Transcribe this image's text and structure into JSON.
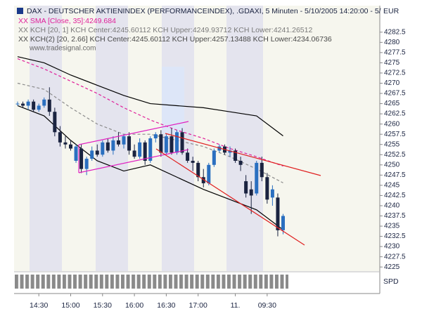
{
  "chart_data": {
    "type": "candlestick",
    "title": "DAX - DEUTSCHER AKTIENINDEX (PERFORMANCEINDEX), .GDAXI, 5 Minuten - 5/10/2005 14:20:00 - 5/",
    "currency": "EUR",
    "watermark": "www.tradesignal.com",
    "volume_label": "SPD",
    "up_color": "#2a6fc0",
    "down_color": "#1a2340",
    "categories": [
      null,
      null,
      null,
      null,
      "14:30",
      null,
      null,
      null,
      null,
      null,
      "15:00",
      null,
      null,
      null,
      null,
      null,
      "15:30",
      null,
      null,
      null,
      null,
      null,
      "16:00",
      null,
      null,
      null,
      null,
      null,
      "16:30",
      null,
      null,
      null,
      null,
      null,
      "17:00",
      null,
      null,
      null,
      null,
      null,
      null,
      "11.",
      null,
      null,
      null,
      null,
      null,
      "09:30",
      null,
      null,
      null
    ],
    "open": [
      4265,
      4265,
      4264.5,
      4265.5,
      4263.5,
      4264.5,
      4266,
      4263,
      4258,
      4255.5,
      4255,
      4251,
      4254,
      4249,
      4251.5,
      4253.5,
      4252.5,
      4255.5,
      4253.5,
      4256,
      4255,
      4257,
      4253.5,
      4252,
      4255.5,
      4251,
      4256.5,
      4257.5,
      4253,
      4257,
      4253,
      4258,
      4253,
      4251,
      4250.5,
      4247,
      4245.5,
      4250,
      4253.5,
      4254.5,
      4253,
      4253.5,
      4251,
      4246,
      4244,
      4243,
      4250.5,
      4247,
      4242,
      4242,
      4234
    ],
    "high": [
      4265.5,
      4265.5,
      4266,
      4266,
      4265,
      4266.5,
      4269,
      4264,
      4259.5,
      4257,
      4256,
      4255,
      4255,
      4252,
      4254.5,
      4255,
      4256,
      4256.5,
      4257,
      4258,
      4257.5,
      4258,
      4255,
      4256.5,
      4256,
      4257,
      4258,
      4258.5,
      4257.5,
      4259,
      4258.5,
      4259,
      4254,
      4252,
      4251,
      4249,
      4250.5,
      4254,
      4255,
      4255,
      4254.5,
      4254,
      4252,
      4247.5,
      4246,
      4251,
      4252,
      4248,
      4245,
      4243,
      4238
    ],
    "low": [
      4264.5,
      4264,
      4263.5,
      4263,
      4263,
      4264,
      4262,
      4257,
      4254.5,
      4254,
      4253.5,
      4250.5,
      4248,
      4247.5,
      4251,
      4252,
      4252,
      4253,
      4252.5,
      4254.5,
      4254,
      4252.5,
      4251.5,
      4251.5,
      4250,
      4250.5,
      4255.5,
      4252,
      4252.5,
      4252.5,
      4252.5,
      4252.5,
      4250.5,
      4248.5,
      4246,
      4244.5,
      4245,
      4249.5,
      4253,
      4252.5,
      4252,
      4250.5,
      4248.5,
      4242,
      4238,
      4242.5,
      4246,
      4240.5,
      4240,
      4232.5,
      4233
    ],
    "close": [
      4265,
      4264.5,
      4265.5,
      4263.5,
      4264.5,
      4266,
      4263,
      4258,
      4255.5,
      4255,
      4254,
      4254.5,
      4249,
      4251.5,
      4253.5,
      4252.5,
      4255.5,
      4253.5,
      4256,
      4255,
      4257,
      4253.5,
      4252,
      4255.5,
      4251,
      4256.5,
      4257.5,
      4253,
      4257,
      4253,
      4258,
      4253,
      4251,
      4250.5,
      4247,
      4245.5,
      4250,
      4253.5,
      4254.5,
      4253,
      4253.5,
      4251,
      4250,
      4243,
      4242.5,
      4250.5,
      4247,
      4241.5,
      4244,
      4234,
      4237.5
    ],
    "series": [
      {
        "name": "XX SMA [Close, 35]:4249.684",
        "color": "#e0209a",
        "dash": true,
        "x": [
          0,
          5,
          10,
          15,
          20,
          25,
          30,
          35,
          40,
          45,
          50
        ],
        "values": [
          4276,
          4273.5,
          4270.5,
          4267.5,
          4264,
          4261,
          4258.5,
          4256.5,
          4254,
          4252,
          4249.7
        ]
      },
      {
        "name": "XX KCH [20, 1] KCH Center:4245.60112 KCH Upper:4249.93712 KCH Lower:4241.26512",
        "color": "#8c8c8c",
        "dash": true,
        "x": [
          0,
          5,
          10,
          15,
          20,
          25,
          30,
          35,
          40,
          45,
          50
        ],
        "values": [
          4270,
          4268.5,
          4264,
          4260,
          4257.5,
          4257.5,
          4256,
          4254.5,
          4252,
          4249,
          4245.6
        ]
      },
      {
        "name": "XX KCH(2) [20, 2.66] KCH Center:4245.60112 KCH Upper:4257.13488 KCH Lower:4234.06736",
        "color": "#000000",
        "dash": false,
        "x": [
          0,
          5,
          10,
          15,
          20,
          25,
          30,
          35,
          40,
          45,
          50
        ],
        "upper": [
          4276.5,
          4275,
          4272,
          4269.5,
          4267,
          4265,
          4264.5,
          4264,
          4263,
          4262,
          4257.1
        ],
        "lower": [
          4264.5,
          4262,
          4256,
          4251,
          4248.5,
          4250,
          4247,
          4244,
          4241.5,
          4239,
          4234.1
        ]
      }
    ],
    "ylim": [
      4224,
      4289
    ],
    "yticks": [
      4225,
      4227.5,
      4230,
      4232.5,
      4235,
      4237.5,
      4240,
      4242.5,
      4245,
      4247.5,
      4250,
      4252.5,
      4255,
      4257.5,
      4260,
      4262.5,
      4265,
      4267.5,
      4270,
      4272.5,
      4275,
      4277.5,
      4280,
      4282.5
    ]
  }
}
